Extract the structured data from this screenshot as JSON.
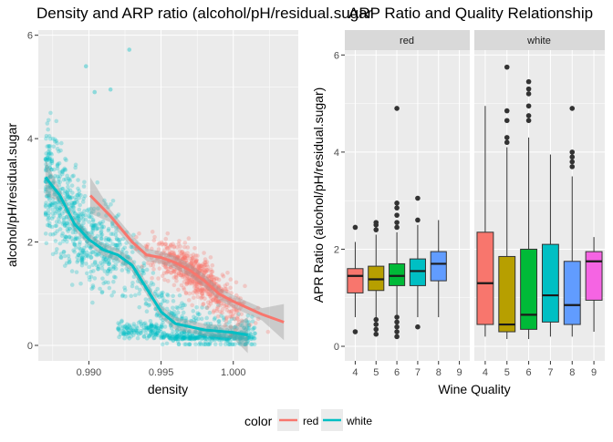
{
  "colors": {
    "red": "#F8766D",
    "white": "#00BFC4",
    "panel": "#EBEBEB",
    "grid": "#FFFFFF",
    "strip": "#D9D9D9"
  },
  "chart_data": [
    {
      "type": "scatter",
      "title": "Density and ARP ratio (alcohol/pH/residual.sugar",
      "xlabel": "density",
      "ylabel": "alcohol/pH/residual.sugar",
      "xlim": [
        0.9865,
        1.0045
      ],
      "ylim": [
        -0.3,
        6.1
      ],
      "x_ticks": [
        0.99,
        0.995,
        1.0
      ],
      "x_tick_labels": [
        "0.990",
        "0.995",
        "1.000"
      ],
      "y_ticks": [
        0,
        2,
        4,
        6
      ],
      "y_tick_labels": [
        "0",
        "2",
        "4",
        "6"
      ],
      "grid": true,
      "series": [
        {
          "name": "red",
          "color": "#F8766D",
          "smooth": [
            [
              0.9901,
              2.9
            ],
            [
              0.9915,
              2.5
            ],
            [
              0.993,
              2.0
            ],
            [
              0.994,
              1.75
            ],
            [
              0.995,
              1.7
            ],
            [
              0.996,
              1.6
            ],
            [
              0.997,
              1.45
            ],
            [
              0.998,
              1.25
            ],
            [
              0.999,
              1.0
            ],
            [
              1.0,
              0.85
            ],
            [
              1.002,
              0.6
            ],
            [
              1.0035,
              0.45
            ]
          ]
        },
        {
          "name": "white",
          "color": "#00BFC4",
          "smooth": [
            [
              0.987,
              3.25
            ],
            [
              0.988,
              2.9
            ],
            [
              0.989,
              2.35
            ],
            [
              0.99,
              2.05
            ],
            [
              0.991,
              1.85
            ],
            [
              0.992,
              1.75
            ],
            [
              0.993,
              1.55
            ],
            [
              0.994,
              1.1
            ],
            [
              0.995,
              0.65
            ],
            [
              0.996,
              0.42
            ],
            [
              0.998,
              0.3
            ],
            [
              1.0,
              0.25
            ],
            [
              1.001,
              0.2
            ]
          ]
        }
      ]
    },
    {
      "type": "box",
      "title": "ARP Ratio and Quality Relationship",
      "xlabel": "Wine Quality",
      "ylabel": "APR Ratio (alcohol/pH/residual.sugar)",
      "ylim": [
        -0.3,
        6.1
      ],
      "y_ticks": [
        0,
        2,
        4,
        6
      ],
      "y_tick_labels": [
        "0",
        "2",
        "4",
        "6"
      ],
      "categories": [
        "4",
        "5",
        "6",
        "7",
        "8",
        "9"
      ],
      "box_colors": {
        "4": "#F8766D",
        "5": "#B79F00",
        "6": "#00BA38",
        "7": "#00BFC4",
        "8": "#619CFF",
        "9": "#F564E3"
      },
      "facets": [
        {
          "name": "red",
          "boxes": [
            {
              "q": "4",
              "lw": 0.6,
              "q1": 1.1,
              "med": 1.45,
              "q3": 1.6,
              "uw": 2.15,
              "out": [
                0.3,
                2.45
              ]
            },
            {
              "q": "5",
              "lw": 0.6,
              "q1": 1.15,
              "med": 1.38,
              "q3": 1.65,
              "uw": 2.3,
              "out": [
                0.25,
                0.35,
                0.45,
                0.55,
                2.4,
                2.5,
                2.55
              ]
            },
            {
              "q": "6",
              "lw": 0.65,
              "q1": 1.25,
              "med": 1.45,
              "q3": 1.7,
              "uw": 2.35,
              "out": [
                0.2,
                0.3,
                0.4,
                0.5,
                0.6,
                2.45,
                2.55,
                2.7,
                2.85,
                2.95,
                4.9
              ]
            },
            {
              "q": "7",
              "lw": 0.6,
              "q1": 1.25,
              "med": 1.55,
              "q3": 1.8,
              "uw": 2.5,
              "out": [
                0.4,
                2.6,
                3.05
              ]
            },
            {
              "q": "8",
              "lw": 0.6,
              "q1": 1.35,
              "med": 1.7,
              "q3": 1.95,
              "uw": 2.6,
              "out": []
            }
          ]
        },
        {
          "name": "white",
          "boxes": [
            {
              "q": "4",
              "lw": 0.2,
              "q1": 0.45,
              "med": 1.3,
              "q3": 2.35,
              "uw": 4.95,
              "out": []
            },
            {
              "q": "5",
              "lw": 0.15,
              "q1": 0.3,
              "med": 0.45,
              "q3": 1.85,
              "uw": 4.1,
              "out": [
                4.2,
                4.3,
                4.65,
                4.85,
                5.75
              ]
            },
            {
              "q": "6",
              "lw": 0.15,
              "q1": 0.35,
              "med": 0.65,
              "q3": 2.0,
              "uw": 4.3,
              "out": [
                4.65,
                4.75,
                4.95,
                5.2,
                5.3,
                5.45
              ]
            },
            {
              "q": "7",
              "lw": 0.2,
              "q1": 0.5,
              "med": 1.05,
              "q3": 2.1,
              "uw": 3.95,
              "out": []
            },
            {
              "q": "8",
              "lw": 0.2,
              "q1": 0.45,
              "med": 0.85,
              "q3": 1.75,
              "uw": 3.5,
              "out": [
                3.7,
                3.8,
                3.9,
                4.0,
                4.9
              ]
            },
            {
              "q": "9",
              "lw": 0.3,
              "q1": 0.95,
              "med": 1.75,
              "q3": 1.95,
              "uw": 2.25,
              "out": []
            }
          ]
        }
      ]
    }
  ],
  "legend": {
    "title": "color",
    "items": [
      "red",
      "white"
    ]
  }
}
